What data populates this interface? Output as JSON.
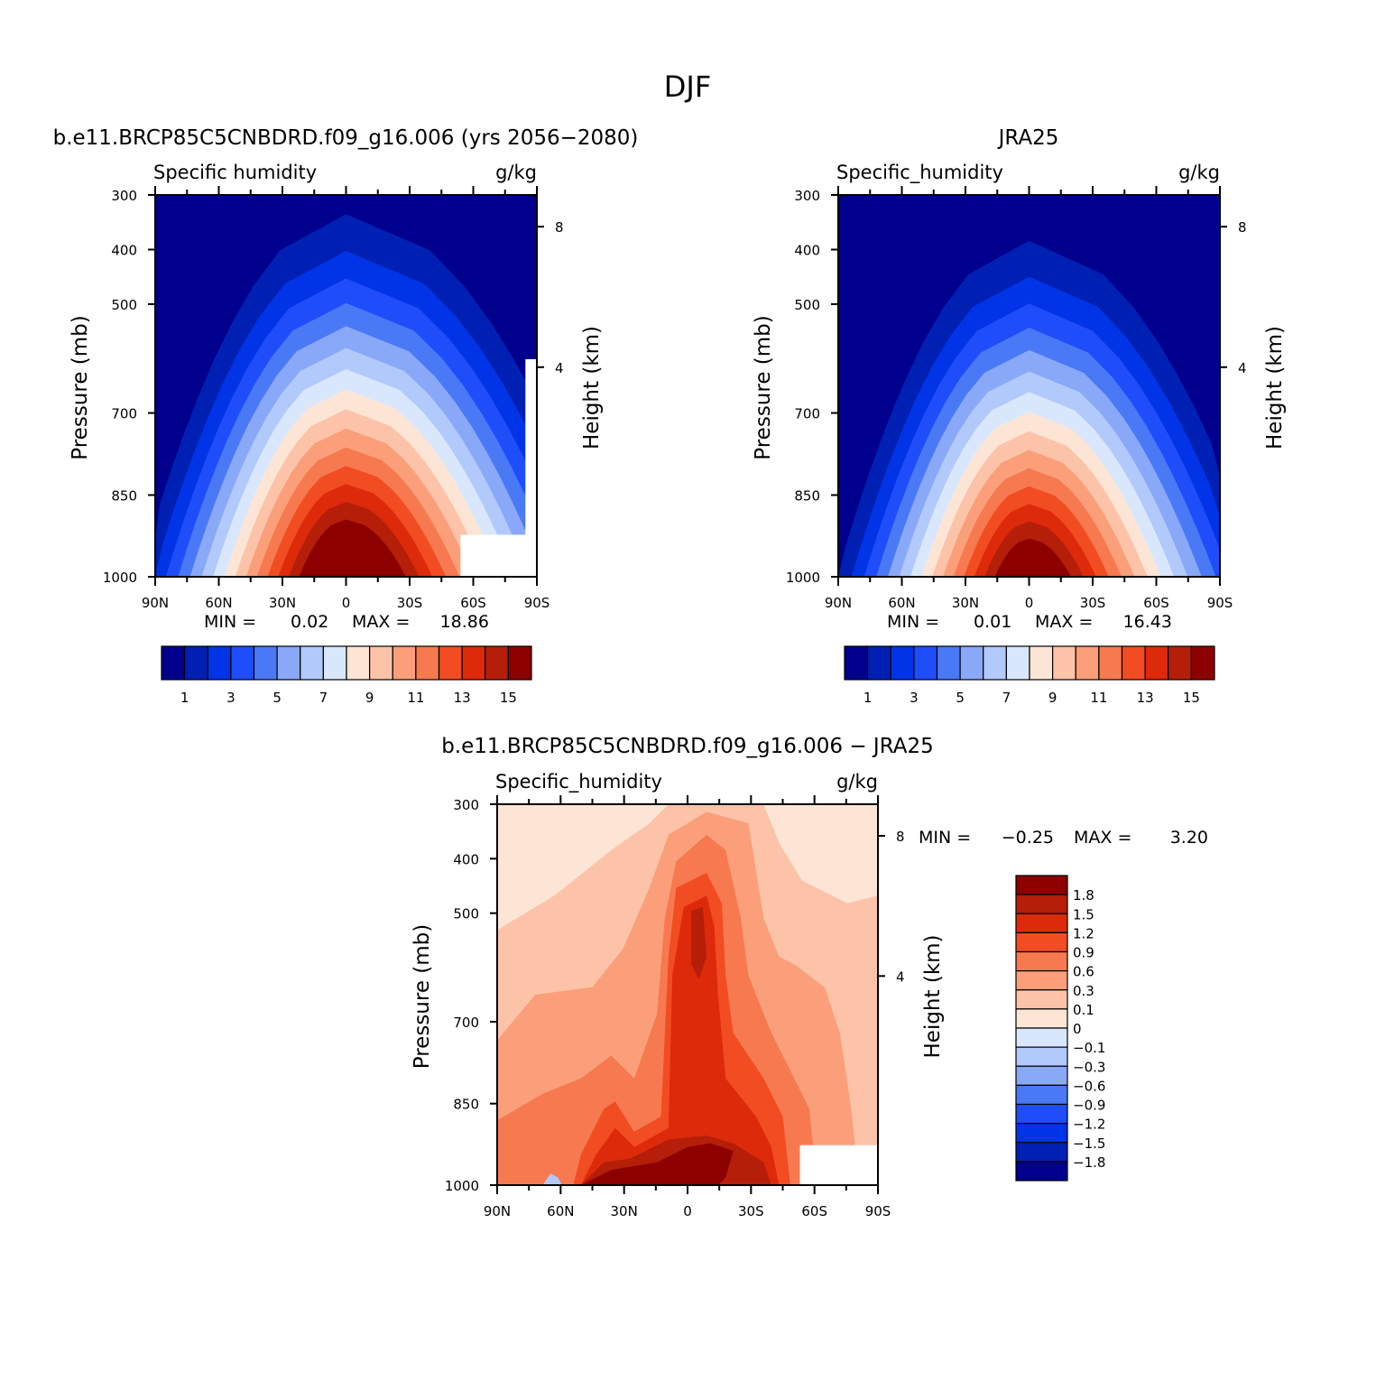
{
  "figure": {
    "title": "DJF"
  },
  "chart_data": [
    {
      "type": "contour",
      "id": "model",
      "title": "b.e11.BRCP85C5CNBDRD.f09_g16.006 (yrs 2056-2080)",
      "variable_label": "Specific humidity",
      "units": "g/kg",
      "ylabel": "Pressure (mb)",
      "ylabel_right": "Height (km)",
      "x_ticks": [
        "90N",
        "60N",
        "30N",
        "0",
        "30S",
        "60S",
        "90S"
      ],
      "y_ticks": [
        "300",
        "400",
        "500",
        "700",
        "850",
        "1000"
      ],
      "y_ticks_right": [
        "8",
        "4"
      ],
      "min_label": "MIN =",
      "min_value": "0.02",
      "max_label": "MAX =",
      "max_value": "18.86",
      "colorbar": {
        "orientation": "horizontal",
        "colors": [
          "#00008c",
          "#0020b4",
          "#0034e6",
          "#1f4dfa",
          "#4979f5",
          "#8aa8f8",
          "#b2c9fb",
          "#d9e7fd",
          "#fde5d5",
          "#fcc3a8",
          "#fa9f7a",
          "#f7794f",
          "#f24c22",
          "#dd2a0a",
          "#b51e09",
          "#8c0000"
        ],
        "tick_labels": [
          "1",
          "3",
          "5",
          "7",
          "9",
          "11",
          "13",
          "15"
        ],
        "tick_positions": [
          1,
          3,
          5,
          7,
          9,
          11,
          13,
          15
        ]
      },
      "peak_level": 15
    },
    {
      "type": "contour",
      "id": "obs",
      "title": "JRA25",
      "variable_label": "Specific_humidity",
      "units": "g/kg",
      "ylabel": "Pressure (mb)",
      "ylabel_right": "Height (km)",
      "x_ticks": [
        "90N",
        "60N",
        "30N",
        "0",
        "30S",
        "60S",
        "90S"
      ],
      "y_ticks": [
        "300",
        "400",
        "500",
        "700",
        "850",
        "1000"
      ],
      "y_ticks_right": [
        "8",
        "4"
      ],
      "min_label": "MIN =",
      "min_value": "0.01",
      "max_label": "MAX =",
      "max_value": "16.43",
      "colorbar": {
        "orientation": "horizontal",
        "colors": [
          "#00008c",
          "#0020b4",
          "#0034e6",
          "#1f4dfa",
          "#4979f5",
          "#8aa8f8",
          "#b2c9fb",
          "#d9e7fd",
          "#fde5d5",
          "#fcc3a8",
          "#fa9f7a",
          "#f7794f",
          "#f24c22",
          "#dd2a0a",
          "#b51e09",
          "#8c0000"
        ],
        "tick_labels": [
          "1",
          "3",
          "5",
          "7",
          "9",
          "11",
          "13",
          "15"
        ],
        "tick_positions": [
          1,
          3,
          5,
          7,
          9,
          11,
          13,
          15
        ]
      },
      "peak_level": 15
    },
    {
      "type": "contour",
      "id": "diff",
      "title": "b.e11.BRCP85C5CNBDRD.f09_g16.006 - JRA25",
      "variable_label": "Specific_humidity",
      "units": "g/kg",
      "ylabel": "Pressure (mb)",
      "ylabel_right": "Height (km)",
      "x_ticks": [
        "90N",
        "60N",
        "30N",
        "0",
        "30S",
        "60S",
        "90S"
      ],
      "y_ticks": [
        "300",
        "400",
        "500",
        "700",
        "850",
        "1000"
      ],
      "y_ticks_right": [
        "8",
        "4"
      ],
      "min_label": "MIN =",
      "min_value": "-0.25",
      "max_label": "MAX =",
      "max_value": "3.20",
      "colorbar": {
        "orientation": "vertical",
        "colors_top_to_bottom": [
          "#8c0000",
          "#b51e09",
          "#dd2a0a",
          "#f24c22",
          "#f7794f",
          "#fa9f7a",
          "#fcc3a8",
          "#fde5d5",
          "#d9e7fd",
          "#b2c9fb",
          "#8aa8f8",
          "#4979f5",
          "#1f4dfa",
          "#0034e6",
          "#0020b4",
          "#00008c"
        ],
        "tick_labels": [
          "1.8",
          "1.5",
          "1.2",
          "0.9",
          "0.6",
          "0.3",
          "0.1",
          "0",
          "-0.1",
          "-0.3",
          "-0.6",
          "-0.9",
          "-1.2",
          "-1.5",
          "-1.8"
        ]
      }
    }
  ]
}
